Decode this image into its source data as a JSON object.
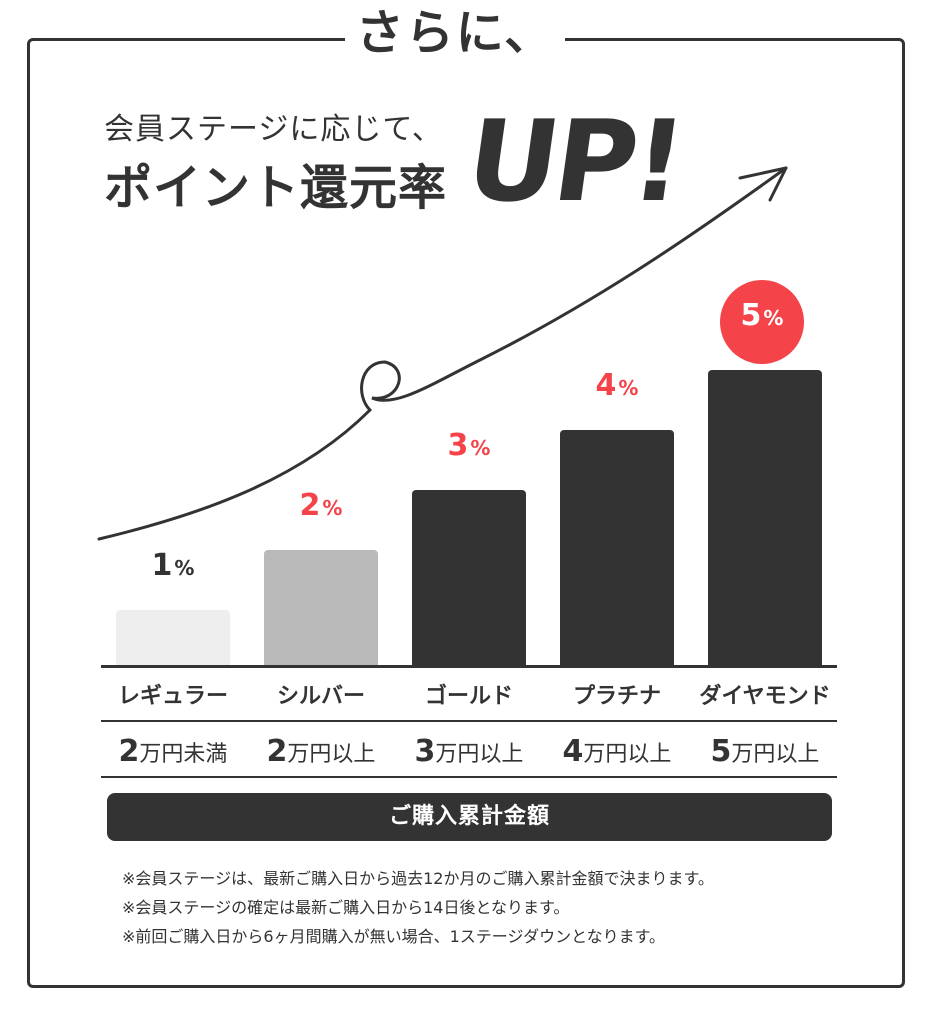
{
  "header": {
    "title": "さらに、",
    "subtitle": "会員ステージに応じて、",
    "headline": "ポイント還元率",
    "emphasis": "UP!"
  },
  "colors": {
    "dark": "#333333",
    "accent": "#f4444a",
    "regular_bar": "#eeeeee",
    "silver_bar": "#b9b9b9"
  },
  "chart_data": {
    "type": "bar",
    "categories": [
      "レギュラー",
      "シルバー",
      "ゴールド",
      "プラチナ",
      "ダイヤモンド"
    ],
    "values": [
      1,
      2,
      3,
      4,
      5
    ],
    "unit": "%",
    "ylim": [
      0,
      5
    ]
  },
  "rates": [
    {
      "num": "1",
      "sym": "%"
    },
    {
      "num": "2",
      "sym": "%"
    },
    {
      "num": "3",
      "sym": "%"
    },
    {
      "num": "4",
      "sym": "%"
    },
    {
      "num": "5",
      "sym": "%"
    }
  ],
  "stages": [
    "レギュラー",
    "シルバー",
    "ゴールド",
    "プラチナ",
    "ダイヤモンド"
  ],
  "amounts": [
    {
      "num": "2",
      "text": "万円未満"
    },
    {
      "num": "2",
      "text": "万円以上"
    },
    {
      "num": "3",
      "text": "万円以上"
    },
    {
      "num": "4",
      "text": "万円以上"
    },
    {
      "num": "5",
      "text": "万円以上"
    }
  ],
  "banner": "ご購入累計金額",
  "notes": [
    "※会員ステージは、最新ご購入日から過去12か月のご購入累計金額で決まります。",
    "※会員ステージの確定は最新ご購入日から14日後となります。",
    "※前回ご購入日から6ヶ月間購入が無い場合、1ステージダウンとなります。"
  ]
}
